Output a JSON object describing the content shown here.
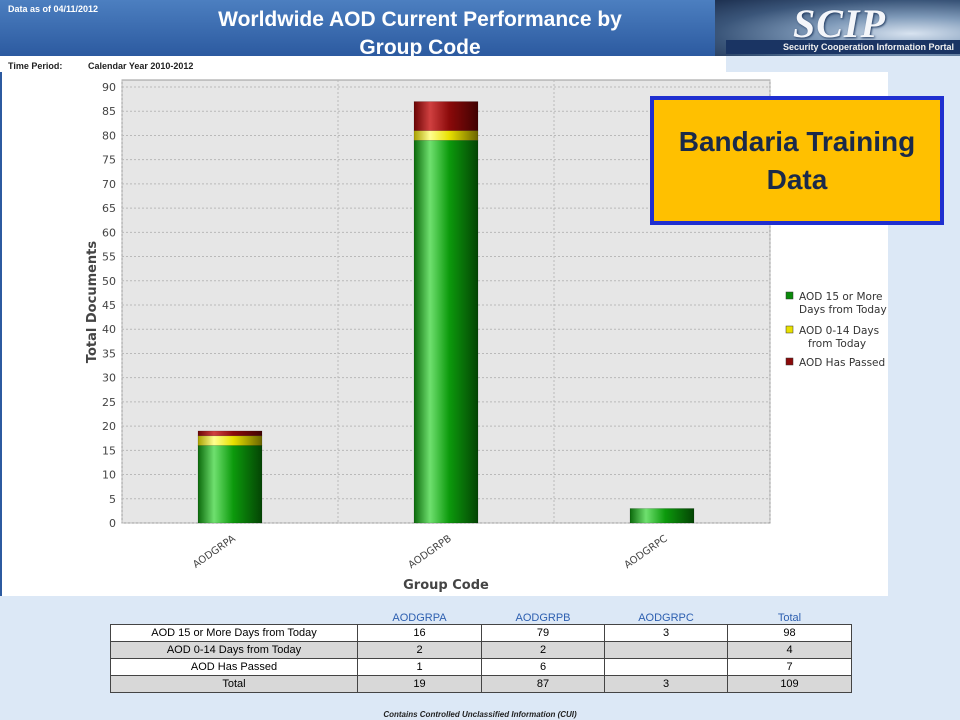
{
  "header": {
    "data_as_of": "Data as of 04/11/2012",
    "title_line1": "Worldwide AOD Current Performance by",
    "title_line2": "Group Code",
    "logo_text": "SCIP",
    "logo_tagline": "Security Cooperation Information Portal",
    "time_period_label": "Time Period:",
    "time_period_value": "Calendar Year 2010-2012"
  },
  "callout": {
    "line1": "Bandaria Training",
    "line2": "Data"
  },
  "chart_data": {
    "type": "bar",
    "stacked": true,
    "categories": [
      "AODGRPA",
      "AODGRPB",
      "AODGRPC"
    ],
    "series": [
      {
        "name": "AOD 15 or More Days from Today",
        "values": [
          16,
          79,
          3
        ],
        "color": "#0a8a0a"
      },
      {
        "name": "AOD 0-14 Days from Today",
        "values": [
          2,
          2,
          0
        ],
        "color": "#e8e000"
      },
      {
        "name": "AOD Has Passed",
        "values": [
          1,
          6,
          0
        ],
        "color": "#8b0a0a"
      }
    ],
    "legend_labels": [
      [
        "AOD 15 or More",
        "Days from Today"
      ],
      [
        "AOD 0-14 Days",
        "from Today"
      ],
      [
        "AOD Has Passed"
      ]
    ],
    "xlabel": "Group Code",
    "ylabel": "Total Documents",
    "ylim": [
      0,
      90
    ],
    "yticks": [
      0,
      5,
      10,
      15,
      20,
      25,
      30,
      35,
      40,
      45,
      50,
      55,
      60,
      65,
      70,
      75,
      80,
      85,
      90
    ],
    "grid": true,
    "legend_position": "right"
  },
  "table": {
    "columns": [
      "AODGRPA",
      "AODGRPB",
      "AODGRPC",
      "Total"
    ],
    "rows": [
      {
        "label": "AOD 15 or More Days from Today",
        "cells": [
          "16",
          "79",
          "3",
          "98"
        ]
      },
      {
        "label": "AOD 0-14 Days from Today",
        "cells": [
          "2",
          "2",
          "",
          "4"
        ]
      },
      {
        "label": "AOD Has Passed",
        "cells": [
          "1",
          "6",
          "",
          "7"
        ]
      },
      {
        "label": "Total",
        "cells": [
          "19",
          "87",
          "3",
          "109"
        ]
      }
    ]
  },
  "footer": "Contains Controlled Unclassified Information (CUI)"
}
